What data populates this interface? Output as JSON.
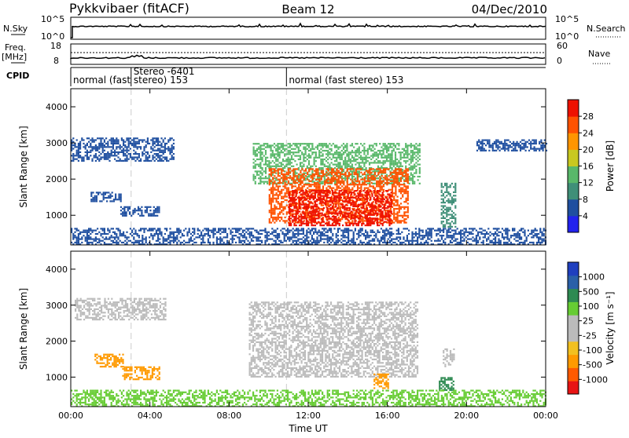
{
  "header": {
    "station": "Pykkvibaer (fitACF)",
    "beam": "Beam 12",
    "date": "04/Dec/2010"
  },
  "summary_panels": {
    "nsky_label": "N.Sky",
    "nsky_ticks": [
      "10^5",
      "10^0"
    ],
    "nsearch_label": "N.Search",
    "nsearch_ticks": [
      "10^5",
      "10^0"
    ],
    "freq_label_1": "Freq.",
    "freq_label_2": "[MHz]",
    "freq_ticks": [
      "18",
      "8"
    ],
    "nave_label": "Nave",
    "nave_ticks": [
      "60",
      "0"
    ],
    "cpid_label": "CPID",
    "cpid_segments": [
      {
        "label": "normal (fast stereo) 153",
        "start_hour": 0
      },
      {
        "label": "Stereo -6401",
        "start_hour": 3.05
      },
      {
        "label": "normal (fast stereo) 153",
        "start_hour": 10.9
      }
    ]
  },
  "colors": {
    "power_scale": [
      "#2222ee",
      "#1f4fa0",
      "#3f8f78",
      "#59b86a",
      "#c8c820",
      "#ff9500",
      "#ff5200",
      "#ee1100"
    ],
    "velocity_scale": [
      "#e81414",
      "#ff5a00",
      "#ff9a00",
      "#f2c020",
      "#bbbbbb",
      "#bbbbbb",
      "#66cc33",
      "#2e8a52",
      "#2a60a8",
      "#1f3fbf"
    ],
    "velocity_ground": "#bbbbbb"
  },
  "chart_data": [
    {
      "type": "heatmap",
      "panel": "power",
      "ylabel": "Slant Range [km]",
      "xlabel": "Time UT",
      "x_ticks": [
        "00:00",
        "04:00",
        "08:00",
        "12:00",
        "16:00",
        "20:00",
        "00:00"
      ],
      "x_range_hours": [
        0,
        24
      ],
      "y_ticks": [
        "1000",
        "2000",
        "3000",
        "4000"
      ],
      "y_range_km": [
        180,
        4500
      ],
      "colorbar_label": "Power [dB]",
      "colorbar_ticks": [
        "4",
        "8",
        "12",
        "16",
        "20",
        "24",
        "28"
      ],
      "value_range": [
        0,
        30
      ],
      "regions": [
        {
          "t0": 0.0,
          "t1": 5.2,
          "r0": 2500,
          "r1": 3150,
          "v": 6
        },
        {
          "t0": 1.0,
          "t1": 2.5,
          "r0": 1400,
          "r1": 1650,
          "v": 5
        },
        {
          "t0": 2.5,
          "t1": 4.5,
          "r0": 1000,
          "r1": 1250,
          "v": 4
        },
        {
          "t0": 9.2,
          "t1": 17.6,
          "r0": 1900,
          "r1": 3000,
          "v": 14
        },
        {
          "t0": 10.0,
          "t1": 17.0,
          "r0": 800,
          "r1": 2300,
          "v": 26
        },
        {
          "t0": 11.0,
          "t1": 16.2,
          "r0": 700,
          "r1": 1700,
          "v": 29
        },
        {
          "t0": 18.7,
          "t1": 19.4,
          "r0": 700,
          "r1": 1900,
          "v": 8
        },
        {
          "t0": 20.5,
          "t1": 24.0,
          "r0": 2800,
          "r1": 3100,
          "v": 5
        },
        {
          "t0": 0.0,
          "t1": 24.0,
          "r0": 180,
          "r1": 650,
          "v": 7
        }
      ]
    },
    {
      "type": "heatmap",
      "panel": "velocity",
      "ylabel": "Slant Range [km]",
      "xlabel": "Time UT",
      "x_ticks": [
        "00:00",
        "04:00",
        "08:00",
        "12:00",
        "16:00",
        "20:00",
        "00:00"
      ],
      "x_range_hours": [
        0,
        24
      ],
      "y_ticks": [
        "1000",
        "2000",
        "3000",
        "4000"
      ],
      "y_range_km": [
        180,
        4500
      ],
      "colorbar_label": "Velocity [m s⁻¹]",
      "colorbar_ticks": [
        "1000",
        "500",
        "100",
        "25",
        "-25",
        "-100",
        "-500",
        "-1000"
      ],
      "value_range": [
        -1000,
        1000
      ],
      "regions": [
        {
          "t0": 0.2,
          "t1": 4.8,
          "r0": 2600,
          "r1": 3200,
          "v": 0
        },
        {
          "t0": 1.2,
          "t1": 2.6,
          "r0": 1300,
          "r1": 1650,
          "v": -200
        },
        {
          "t0": 2.6,
          "t1": 4.5,
          "r0": 950,
          "r1": 1300,
          "v": -150
        },
        {
          "t0": 9.0,
          "t1": 17.5,
          "r0": 1000,
          "r1": 3100,
          "v": 0
        },
        {
          "t0": 15.3,
          "t1": 16.0,
          "r0": 700,
          "r1": 1100,
          "v": -300
        },
        {
          "t0": 18.6,
          "t1": 19.3,
          "r0": 650,
          "r1": 1000,
          "v": 300
        },
        {
          "t0": 18.8,
          "t1": 19.4,
          "r0": 1300,
          "r1": 1800,
          "v": 0
        },
        {
          "t0": 0.0,
          "t1": 24.0,
          "r0": 180,
          "r1": 650,
          "v": 30
        }
      ]
    }
  ]
}
